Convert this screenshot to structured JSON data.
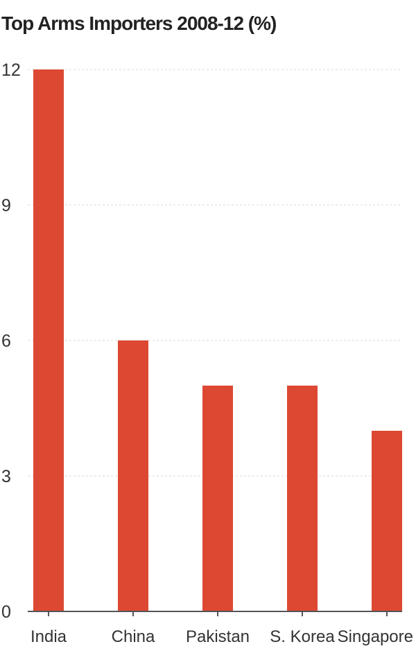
{
  "chart_data": {
    "type": "bar",
    "title": "Top Arms Importers 2008-12 (%)",
    "categories": [
      "India",
      "China",
      "Pakistan",
      "S. Korea",
      "Singapore"
    ],
    "values": [
      12,
      6,
      5,
      5,
      4
    ],
    "yticks": [
      0,
      3,
      6,
      9,
      12
    ],
    "ylim": [
      0,
      12
    ],
    "grid": true,
    "bar_color": "#dd4833",
    "grid_color": "#d9d9d9",
    "axis_color": "#555555"
  }
}
